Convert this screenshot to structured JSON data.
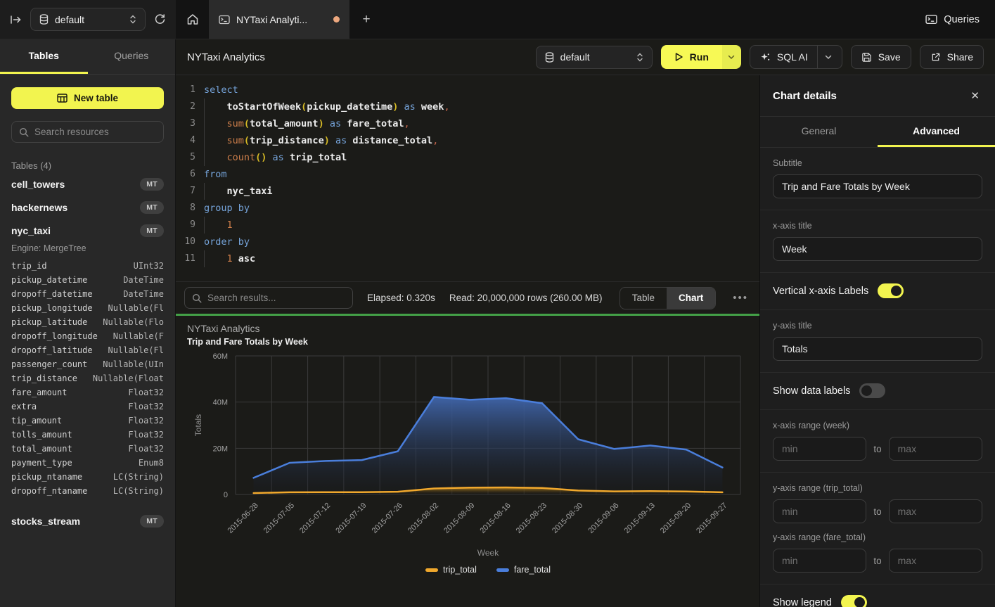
{
  "topbar": {
    "database": "default",
    "tab_title": "NYTaxi Analyti...",
    "new_tab": "+",
    "queries_label": "Queries"
  },
  "sidebar": {
    "tabs": {
      "tables": "Tables",
      "queries": "Queries"
    },
    "new_table": "New table",
    "search_placeholder": "Search resources",
    "section_title": "Tables (4)",
    "tables": [
      {
        "name": "cell_towers",
        "badge": "MT"
      },
      {
        "name": "hackernews",
        "badge": "MT"
      },
      {
        "name": "nyc_taxi",
        "badge": "MT",
        "engine": "Engine: MergeTree",
        "columns": [
          [
            "trip_id",
            "UInt32"
          ],
          [
            "pickup_datetime",
            "DateTime"
          ],
          [
            "dropoff_datetime",
            "DateTime"
          ],
          [
            "pickup_longitude",
            "Nullable(Fl"
          ],
          [
            "pickup_latitude",
            "Nullable(Flo"
          ],
          [
            "dropoff_longitude",
            "Nullable(F"
          ],
          [
            "dropoff_latitude",
            "Nullable(Fl"
          ],
          [
            "passenger_count",
            "Nullable(UIn"
          ],
          [
            "trip_distance",
            "Nullable(Float"
          ],
          [
            "fare_amount",
            "Float32"
          ],
          [
            "extra",
            "Float32"
          ],
          [
            "tip_amount",
            "Float32"
          ],
          [
            "tolls_amount",
            "Float32"
          ],
          [
            "total_amount",
            "Float32"
          ],
          [
            "payment_type",
            "Enum8"
          ],
          [
            "pickup_ntaname",
            "LC(String)"
          ],
          [
            "dropoff_ntaname",
            "LC(String)"
          ]
        ]
      },
      {
        "name": "stocks_stream",
        "badge": "MT"
      }
    ]
  },
  "toolbar": {
    "title": "NYTaxi Analytics",
    "database": "default",
    "run": "Run",
    "sql_ai": "SQL AI",
    "save": "Save",
    "share": "Share"
  },
  "editor": {
    "lines": [
      [
        [
          "kw",
          "select"
        ]
      ],
      [
        [
          "ind",
          ""
        ],
        [
          "id",
          "toStartOfWeek"
        ],
        [
          "pa",
          "("
        ],
        [
          "id",
          "pickup_datetime"
        ],
        [
          "pa",
          ")"
        ],
        [
          "tx",
          " "
        ],
        [
          "kw",
          "as"
        ],
        [
          "tx",
          " "
        ],
        [
          "id",
          "week"
        ],
        [
          "pu",
          ","
        ]
      ],
      [
        [
          "ind",
          ""
        ],
        [
          "fn",
          "sum"
        ],
        [
          "pa",
          "("
        ],
        [
          "id",
          "total_amount"
        ],
        [
          "pa",
          ")"
        ],
        [
          "tx",
          " "
        ],
        [
          "kw",
          "as"
        ],
        [
          "tx",
          " "
        ],
        [
          "id",
          "fare_total"
        ],
        [
          "pu",
          ","
        ]
      ],
      [
        [
          "ind",
          ""
        ],
        [
          "fn",
          "sum"
        ],
        [
          "pa",
          "("
        ],
        [
          "id",
          "trip_distance"
        ],
        [
          "pa",
          ")"
        ],
        [
          "tx",
          " "
        ],
        [
          "kw",
          "as"
        ],
        [
          "tx",
          " "
        ],
        [
          "id",
          "distance_total"
        ],
        [
          "pu",
          ","
        ]
      ],
      [
        [
          "ind",
          ""
        ],
        [
          "fn",
          "count"
        ],
        [
          "pa",
          "()"
        ],
        [
          "tx",
          " "
        ],
        [
          "kw",
          "as"
        ],
        [
          "tx",
          " "
        ],
        [
          "id",
          "trip_total"
        ]
      ],
      [
        [
          "kw",
          "from"
        ]
      ],
      [
        [
          "ind",
          ""
        ],
        [
          "id",
          "nyc_taxi"
        ]
      ],
      [
        [
          "kw",
          "group by"
        ]
      ],
      [
        [
          "ind",
          ""
        ],
        [
          "nu",
          "1"
        ]
      ],
      [
        [
          "kw",
          "order by"
        ]
      ],
      [
        [
          "ind",
          ""
        ],
        [
          "nu",
          "1"
        ],
        [
          "tx",
          " "
        ],
        [
          "id",
          "asc"
        ]
      ]
    ]
  },
  "results": {
    "search_placeholder": "Search results...",
    "elapsed": "Elapsed: 0.320s",
    "read": "Read: 20,000,000 rows (260.00 MB)",
    "views": {
      "table": "Table",
      "chart": "Chart"
    },
    "more": "•••"
  },
  "chart_data": {
    "type": "area",
    "title": "NYTaxi Analytics",
    "subtitle": "Trip and Fare Totals by Week",
    "xlabel": "Week",
    "ylabel": "Totals",
    "ylim": [
      0,
      60000000
    ],
    "y_ticks": [
      "0",
      "20M",
      "40M",
      "60M"
    ],
    "grid": true,
    "x_labels_rotated": true,
    "legend_position": "bottom",
    "categories": [
      "2015-06-28",
      "2015-07-05",
      "2015-07-12",
      "2015-07-19",
      "2015-07-26",
      "2015-08-02",
      "2015-08-09",
      "2015-08-16",
      "2015-08-23",
      "2015-08-30",
      "2015-09-06",
      "2015-09-13",
      "2015-09-20",
      "2015-09-27"
    ],
    "series": [
      {
        "name": "trip_total",
        "color": "#F0A82D",
        "values": [
          600000,
          950000,
          1000000,
          1000000,
          1200000,
          2600000,
          3000000,
          3050000,
          2800000,
          1700000,
          1350000,
          1450000,
          1300000,
          950000
        ]
      },
      {
        "name": "fare_total",
        "color": "#4A7EDB",
        "values": [
          7200000,
          13700000,
          14500000,
          14900000,
          18700000,
          42200000,
          41000000,
          41700000,
          39500000,
          23900000,
          19700000,
          21200000,
          19400000,
          11700000
        ]
      }
    ]
  },
  "panel": {
    "title": "Chart details",
    "close": "✕",
    "tabs": {
      "general": "General",
      "advanced": "Advanced"
    },
    "fields": {
      "subtitle": {
        "label": "Subtitle",
        "value": "Trip and Fare Totals by Week"
      },
      "x_axis_title": {
        "label": "x-axis title",
        "value": "Week"
      },
      "vertical_labels": {
        "label": "Vertical x-axis Labels",
        "on": true
      },
      "y_axis_title": {
        "label": "y-axis title",
        "value": "Totals"
      },
      "show_data_labels": {
        "label": "Show data labels",
        "on": false
      },
      "x_range": {
        "label": "x-axis range (week)",
        "min": "min",
        "to": "to",
        "max": "max"
      },
      "y_range_trip": {
        "label": "y-axis range (trip_total)",
        "min": "min",
        "to": "to",
        "max": "max"
      },
      "y_range_fare": {
        "label": "y-axis range (fare_total)",
        "min": "min",
        "to": "to",
        "max": "max"
      },
      "show_legend": {
        "label": "Show legend",
        "on": true
      }
    }
  }
}
